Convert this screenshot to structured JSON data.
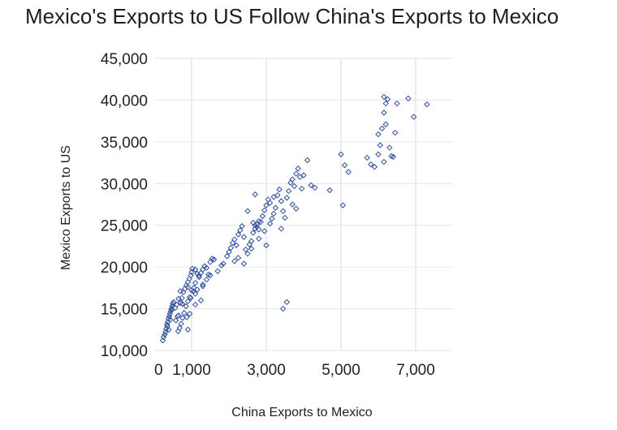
{
  "chart_data": {
    "type": "scatter",
    "title": "Mexico's Exports to US Follow China's Exports to Mexico",
    "xlabel": "China Exports to Mexico",
    "ylabel": "Mexico Exports to US",
    "xlim": [
      0,
      8000
    ],
    "ylim": [
      10000,
      45000
    ],
    "x_ticks": [
      0,
      1000,
      3000,
      5000,
      7000
    ],
    "x_tick_labels": [
      "0",
      "1,000",
      "3,000",
      "5,000",
      "7,000"
    ],
    "y_ticks": [
      10000,
      15000,
      20000,
      25000,
      30000,
      35000,
      40000,
      45000
    ],
    "y_tick_labels": [
      "10,000",
      "15,000",
      "20,000",
      "25,000",
      "30,000",
      "35,000",
      "40,000",
      "45,000"
    ],
    "grid": "vertical",
    "marker": "open-diamond",
    "marker_color": "#2e4f9c",
    "points": [
      [
        230,
        11200
      ],
      [
        250,
        11600
      ],
      [
        300,
        12200
      ],
      [
        320,
        12600
      ],
      [
        340,
        13100
      ],
      [
        360,
        13400
      ],
      [
        380,
        13800
      ],
      [
        400,
        14100
      ],
      [
        420,
        14400
      ],
      [
        440,
        14700
      ],
      [
        460,
        15000
      ],
      [
        480,
        15300
      ],
      [
        500,
        15600
      ],
      [
        280,
        11900
      ],
      [
        350,
        12900
      ],
      [
        390,
        12500
      ],
      [
        430,
        13700
      ],
      [
        470,
        14900
      ],
      [
        520,
        15800
      ],
      [
        560,
        15100
      ],
      [
        600,
        15500
      ],
      [
        650,
        14200
      ],
      [
        700,
        15700
      ],
      [
        740,
        16300
      ],
      [
        780,
        17000
      ],
      [
        820,
        17400
      ],
      [
        860,
        17800
      ],
      [
        900,
        18200
      ],
      [
        940,
        18600
      ],
      [
        980,
        19000
      ],
      [
        1000,
        19400
      ],
      [
        1020,
        19800
      ],
      [
        1060,
        17500
      ],
      [
        1100,
        16800
      ],
      [
        1150,
        17300
      ],
      [
        1200,
        18800
      ],
      [
        1250,
        19300
      ],
      [
        1300,
        19700
      ],
      [
        1350,
        20100
      ],
      [
        1400,
        18500
      ],
      [
        1450,
        19100
      ],
      [
        1500,
        20600
      ],
      [
        1550,
        21000
      ],
      [
        1000,
        17200
      ],
      [
        950,
        16400
      ],
      [
        900,
        15900
      ],
      [
        850,
        15300
      ],
      [
        800,
        14500
      ],
      [
        760,
        13900
      ],
      [
        720,
        13200
      ],
      [
        680,
        12700
      ],
      [
        640,
        12300
      ],
      [
        620,
        14100
      ],
      [
        580,
        13600
      ],
      [
        900,
        17600
      ],
      [
        1100,
        18100
      ],
      [
        1300,
        17700
      ],
      [
        1150,
        19200
      ],
      [
        1700,
        19500
      ],
      [
        1850,
        20400
      ],
      [
        1950,
        21300
      ],
      [
        2000,
        21800
      ],
      [
        2050,
        22300
      ],
      [
        2100,
        22900
      ],
      [
        2150,
        23300
      ],
      [
        2200,
        22600
      ],
      [
        2250,
        23900
      ],
      [
        2300,
        24400
      ],
      [
        2350,
        24900
      ],
      [
        2400,
        23600
      ],
      [
        2450,
        22100
      ],
      [
        2500,
        21600
      ],
      [
        2550,
        22700
      ],
      [
        2600,
        23100
      ],
      [
        2650,
        24100
      ],
      [
        2700,
        24600
      ],
      [
        2750,
        25100
      ],
      [
        2800,
        25500
      ],
      [
        2650,
        25300
      ],
      [
        2700,
        25000
      ],
      [
        2750,
        24800
      ],
      [
        2800,
        24500
      ],
      [
        2850,
        25400
      ],
      [
        2900,
        26100
      ],
      [
        2950,
        26800
      ],
      [
        3000,
        27400
      ],
      [
        3050,
        28100
      ],
      [
        3100,
        27700
      ],
      [
        3150,
        25800
      ],
      [
        3200,
        26400
      ],
      [
        3250,
        27100
      ],
      [
        3300,
        28600
      ],
      [
        3350,
        29300
      ],
      [
        3400,
        27900
      ],
      [
        3450,
        26700
      ],
      [
        3500,
        25900
      ],
      [
        3550,
        28300
      ],
      [
        3600,
        29100
      ],
      [
        3650,
        30100
      ],
      [
        3700,
        30500
      ],
      [
        3750,
        29700
      ],
      [
        3800,
        31200
      ],
      [
        3850,
        31800
      ],
      [
        3900,
        30800
      ],
      [
        3950,
        29400
      ],
      [
        4000,
        31000
      ],
      [
        4200,
        29800
      ],
      [
        4300,
        29500
      ],
      [
        3100,
        25200
      ],
      [
        2950,
        24300
      ],
      [
        2600,
        22200
      ],
      [
        2400,
        20400
      ],
      [
        2800,
        23400
      ],
      [
        3400,
        24600
      ],
      [
        2250,
        21100
      ],
      [
        2150,
        20700
      ],
      [
        3550,
        15800
      ],
      [
        3450,
        15000
      ],
      [
        4100,
        32800
      ],
      [
        4700,
        29200
      ],
      [
        5000,
        33500
      ],
      [
        5100,
        32200
      ],
      [
        5050,
        27400
      ],
      [
        5200,
        31400
      ],
      [
        5700,
        33100
      ],
      [
        5800,
        32300
      ],
      [
        5900,
        32000
      ],
      [
        6000,
        33500
      ],
      [
        6050,
        34600
      ],
      [
        6100,
        36600
      ],
      [
        6200,
        37100
      ],
      [
        6000,
        35900
      ],
      [
        6150,
        38500
      ],
      [
        6200,
        39600
      ],
      [
        6150,
        40400
      ],
      [
        6250,
        40100
      ],
      [
        6300,
        34300
      ],
      [
        6350,
        33300
      ],
      [
        6450,
        36100
      ],
      [
        6500,
        39600
      ],
      [
        6800,
        40200
      ],
      [
        6950,
        38000
      ],
      [
        7300,
        39500
      ],
      [
        6150,
        32600
      ],
      [
        6400,
        33200
      ],
      [
        1100,
        19700
      ],
      [
        1200,
        19000
      ],
      [
        1400,
        19900
      ],
      [
        1600,
        20900
      ],
      [
        1800,
        20200
      ],
      [
        3000,
        22600
      ],
      [
        2700,
        28700
      ],
      [
        2500,
        26700
      ],
      [
        3200,
        28400
      ],
      [
        3700,
        27500
      ],
      [
        3800,
        27000
      ],
      [
        1050,
        17100
      ],
      [
        950,
        14400
      ],
      [
        900,
        12500
      ],
      [
        870,
        14000
      ],
      [
        980,
        16300
      ],
      [
        1100,
        15500
      ],
      [
        700,
        17100
      ],
      [
        750,
        15600
      ],
      [
        650,
        16200
      ],
      [
        1250,
        16000
      ],
      [
        1300,
        17900
      ],
      [
        1500,
        19000
      ]
    ]
  }
}
